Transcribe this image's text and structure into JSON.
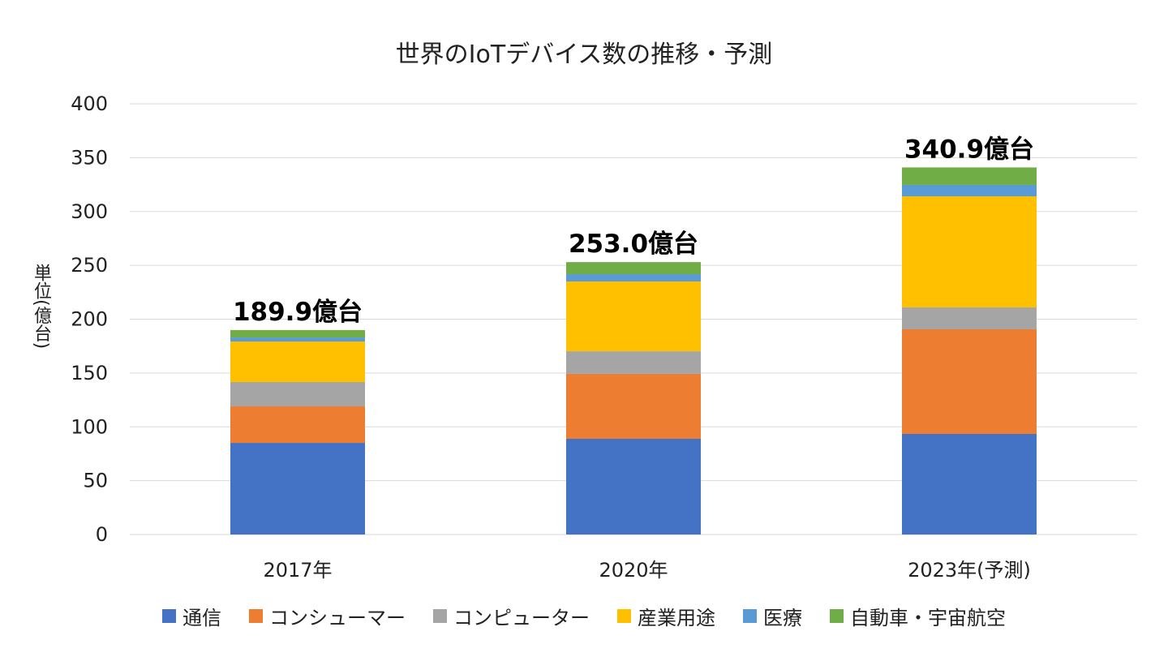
{
  "chart_data": {
    "type": "bar",
    "stacked": true,
    "title": "世界のIoTデバイス数の推移・予測",
    "ylabel": "単位(億台)",
    "xlabel": "",
    "ylim": [
      0,
      400
    ],
    "yticks": [
      0,
      50,
      100,
      150,
      200,
      250,
      300,
      350,
      400
    ],
    "grid": true,
    "legend_position": "bottom",
    "categories": [
      "2017年",
      "2020年",
      "2023年(予測)"
    ],
    "totals_labels": [
      "189.9億台",
      "253.0億台",
      "340.9億台"
    ],
    "totals": [
      189.9,
      253.0,
      340.9
    ],
    "series": [
      {
        "name": "通信",
        "color": "#4472C4",
        "values": [
          85.1,
          88.9,
          93.4
        ]
      },
      {
        "name": "コンシューマー",
        "color": "#ED7D31",
        "values": [
          33.9,
          60.3,
          97.2
        ]
      },
      {
        "name": "コンピューター",
        "color": "#A5A5A5",
        "values": [
          22.6,
          21.0,
          20.3
        ]
      },
      {
        "name": "産業用途",
        "color": "#FFC000",
        "values": [
          37.7,
          64.8,
          103.2
        ]
      },
      {
        "name": "医療",
        "color": "#5B9BD5",
        "values": [
          3.7,
          6.8,
          10.6
        ]
      },
      {
        "name": "自動車・宇宙航空",
        "color": "#70AD47",
        "values": [
          6.9,
          11.2,
          16.2
        ]
      }
    ]
  }
}
